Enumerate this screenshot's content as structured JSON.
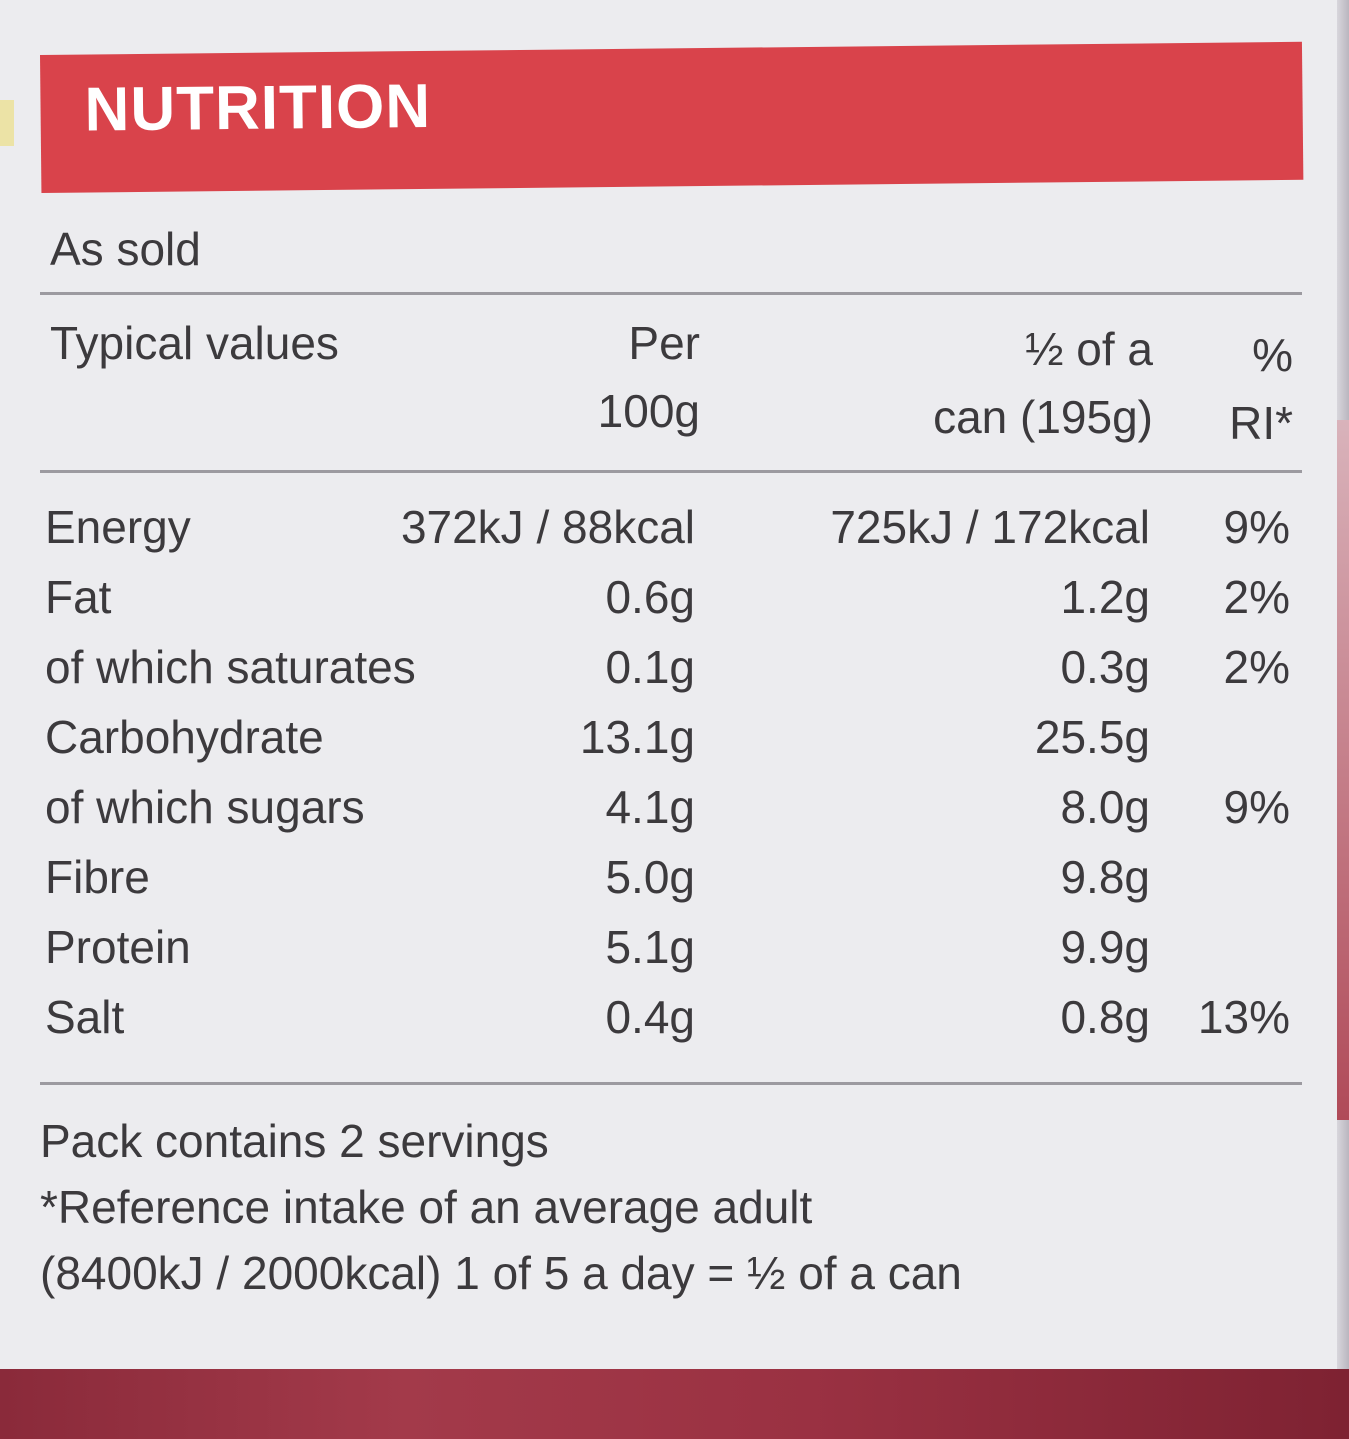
{
  "header": {
    "title": "NUTRITION"
  },
  "subtitle": "As sold",
  "columns": {
    "name": "Typical values",
    "per100_line1": "Per",
    "per100_line2": "100g",
    "half_line1": "½ of a",
    "half_line2": "can (195g)",
    "ri_line1": "%",
    "ri_line2": "RI*"
  },
  "rows": [
    {
      "name": "Energy",
      "per100": "372kJ / 88kcal",
      "half": "725kJ / 172kcal",
      "ri": "9%"
    },
    {
      "name": "Fat",
      "per100": "0.6g",
      "half": "1.2g",
      "ri": "2%"
    },
    {
      "name": "of which saturates",
      "per100": "0.1g",
      "half": "0.3g",
      "ri": "2%"
    },
    {
      "name": "Carbohydrate",
      "per100": "13.1g",
      "half": "25.5g",
      "ri": ""
    },
    {
      "name": "of which sugars",
      "per100": "4.1g",
      "half": "8.0g",
      "ri": "9%"
    },
    {
      "name": "Fibre",
      "per100": "5.0g",
      "half": "9.8g",
      "ri": ""
    },
    {
      "name": "Protein",
      "per100": "5.1g",
      "half": "9.9g",
      "ri": ""
    },
    {
      "name": "Salt",
      "per100": "0.4g",
      "half": "0.8g",
      "ri": "13%"
    }
  ],
  "footer": {
    "servings": "Pack contains 2 servings",
    "reference": "*Reference intake of an average adult",
    "energy_ref": "(8400kJ / 2000kcal)  1 of 5 a day = ½ of a can"
  },
  "colors": {
    "header_bg": "#d9434b",
    "label_bg": "#ececef",
    "text": "#3c3a3d",
    "rule": "#9c9aa0"
  }
}
